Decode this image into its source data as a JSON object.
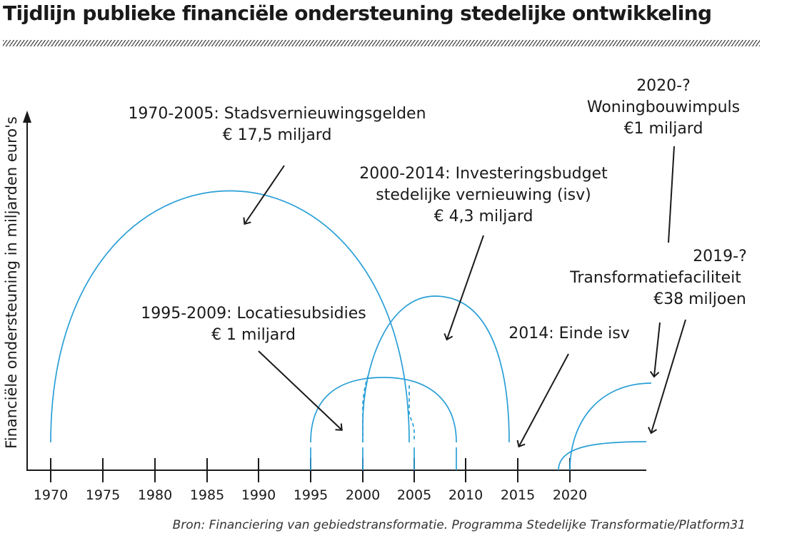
{
  "title": "Tijdlijn publieke financiële ondersteuning stedelijke ontwikkeling",
  "source": "Bron: Financiering van gebiedstransformatie. Programma Stedelijke Transformatie/Platform31",
  "y_axis_label": "Financiële ondersteuning in miljarden euro's",
  "colors": {
    "arc": "#2a9fd6",
    "text": "#1a1a1a"
  },
  "x_ticks": [
    "1970",
    "1975",
    "1980",
    "1985",
    "1990",
    "1995",
    "2000",
    "2005",
    "2010",
    "2015",
    "2020"
  ],
  "annotations": {
    "stads": {
      "line1": "1970-2005: Stadsvernieuwingsgelden",
      "line2": "€ 17,5 miljard"
    },
    "isv": {
      "line1": "2000-2014: Investeringsbudget",
      "line2": "stedelijke vernieuwing (isv)",
      "line3": "€ 4,3 miljard"
    },
    "locatie": {
      "line1": "1995-2009: Locatiesubsidies",
      "line2": "€ 1 miljard"
    },
    "einde": {
      "line1": "2014: Einde isv"
    },
    "woning": {
      "line1": "2020-?",
      "line2": "Woningbouwimpuls",
      "line3": "€1 miljard"
    },
    "transfo": {
      "line1": "2019-?",
      "line2": "Transformatiefaciliteit",
      "line3": "€38 miljoen"
    }
  }
}
